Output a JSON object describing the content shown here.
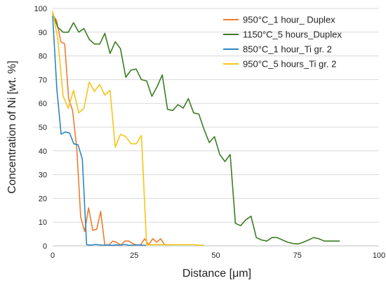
{
  "chart_data": {
    "type": "line",
    "xlabel": "Distance [μm]",
    "ylabel": "Concentration of Ni [wt. %]",
    "xlim": [
      0,
      100
    ],
    "ylim": [
      0,
      100
    ],
    "xticks": [
      0,
      25,
      50,
      75,
      100
    ],
    "yticks": [
      0,
      10,
      20,
      30,
      40,
      50,
      60,
      70,
      80,
      90,
      100
    ],
    "grid": "horizontal",
    "legend_position": "top-right",
    "series": [
      {
        "name": "950°C_1 hour_ Duplex",
        "color": "#ED7D31",
        "x": [
          0,
          1.2,
          2.5,
          3.7,
          4.9,
          6.1,
          7.4,
          8.6,
          9.8,
          11,
          12.3,
          13.5,
          14.7,
          16,
          17.2,
          18.4,
          19.6,
          20.9,
          22.1,
          23.3,
          24.5,
          25.8,
          27,
          28.2,
          29.4,
          30.7,
          31.9,
          33.1,
          34.3,
          35.6,
          36.8
        ],
        "y": [
          97,
          95,
          86,
          85,
          62,
          57,
          41,
          12,
          6,
          16,
          6.5,
          7,
          14.5,
          0.3,
          0.3,
          2,
          1.5,
          0.3,
          2,
          2,
          1,
          0.3,
          0.5,
          3,
          0.5,
          3,
          1.5,
          3,
          0.5,
          0.5,
          0.5
        ]
      },
      {
        "name": "1150°C_5 hours_Duplex",
        "color": "#3B7D23",
        "x": [
          0,
          1.6,
          3.2,
          4.8,
          6.4,
          8,
          9.6,
          11.2,
          12.8,
          14.4,
          16,
          17.6,
          19.2,
          20.8,
          22.4,
          24,
          25.6,
          27.2,
          28.8,
          30.4,
          32,
          33.6,
          35.2,
          36.8,
          38.4,
          40,
          41.6,
          43.2,
          44.8,
          46.4,
          48,
          49.6,
          51.2,
          52.8,
          54.4,
          56,
          57.6,
          59.2,
          60.8,
          62.4,
          64,
          65.6,
          67.2,
          68.8,
          70.4,
          72,
          73.6,
          75.2,
          76.8,
          78.4,
          80,
          81.6,
          83.2,
          84.8,
          86.4,
          88
        ],
        "y": [
          98,
          92,
          90,
          90,
          94,
          90,
          91.5,
          87,
          85,
          85,
          89.5,
          81,
          86,
          83,
          71,
          74,
          74.5,
          70,
          69.5,
          63,
          67,
          72,
          57.5,
          57,
          59.5,
          58,
          62,
          56,
          55.5,
          49,
          43.5,
          46,
          38.5,
          35.5,
          38.5,
          9.5,
          8.5,
          11,
          12.5,
          3.5,
          2.5,
          2,
          3.5,
          3.5,
          2.5,
          1.5,
          1,
          0.8,
          1.5,
          2.5,
          3.5,
          3,
          2,
          2,
          2,
          2
        ]
      },
      {
        "name": "850°C_1 hour_Ti gr. 2",
        "color": "#2E86C1",
        "x": [
          0,
          1.3,
          2.6,
          3.9,
          5.2,
          6.5,
          7.8,
          9.1,
          10.4,
          11.7,
          13,
          14.3,
          15.6,
          16.9,
          18.2,
          19.5,
          20.8,
          22.1,
          23.4,
          24.7,
          26,
          27.3,
          28.6
        ],
        "y": [
          97,
          66,
          47,
          48,
          47.5,
          43,
          42.5,
          36.5,
          0.5,
          0.3,
          0.6,
          0.4,
          0.3,
          0.4,
          0.2,
          0.4,
          0.3,
          0.6,
          0.2,
          0.3,
          0.4,
          0.3,
          0.2
        ]
      },
      {
        "name": "950°C_5 hours_Ti gr. 2",
        "color": "#F5C518",
        "x": [
          0,
          1.6,
          3.2,
          4.8,
          6.4,
          8,
          9.6,
          11.2,
          12.8,
          14.4,
          16,
          17.6,
          19.2,
          20.8,
          22.4,
          24,
          25.6,
          27.2,
          28.8,
          30.4,
          32,
          33.6,
          35.2,
          36.8,
          38.4,
          40,
          41.6,
          43.2,
          44.8,
          46.4
        ],
        "y": [
          99,
          87,
          63,
          58,
          65.5,
          56,
          58,
          69,
          65,
          68,
          63.5,
          65.5,
          41.5,
          47,
          46,
          43,
          43,
          46.5,
          0.5,
          0.5,
          0.5,
          0.5,
          0.5,
          0.5,
          0.5,
          0.5,
          0.5,
          0.5,
          0.3,
          0.3
        ]
      }
    ]
  }
}
